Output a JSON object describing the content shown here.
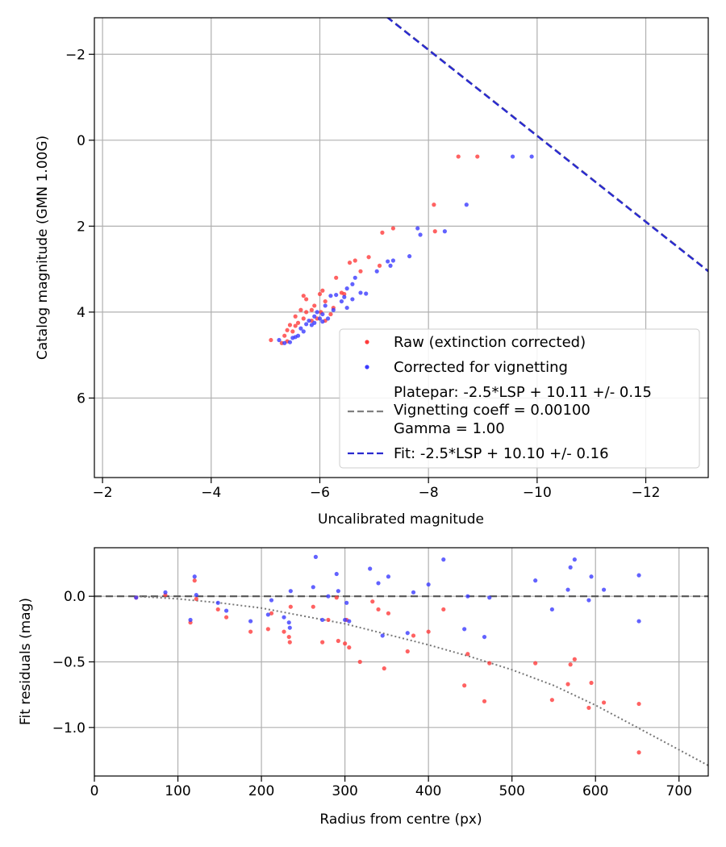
{
  "chart_data": [
    {
      "type": "scatter",
      "xlabel": "Uncalibrated magnitude",
      "ylabel": "Catalog magnitude (GMN 1.00G)",
      "xlim": [
        -1.85,
        -13.15
      ],
      "ylim": [
        7.85,
        -2.85
      ],
      "x_inverted": true,
      "y_inverted": true,
      "grid": true,
      "xticks": [
        -2,
        -4,
        -6,
        -8,
        -10,
        -12
      ],
      "xtick_labels": [
        "−2",
        "−4",
        "−6",
        "−8",
        "−10",
        "−12"
      ],
      "yticks": [
        -2,
        0,
        2,
        4,
        6
      ],
      "ytick_labels": [
        "−2",
        "0",
        "2",
        "4",
        "6"
      ],
      "legend_position": "lower-right",
      "legend": [
        {
          "label": "Raw (extinction corrected)",
          "marker": "dot",
          "color": "#ff3b3b"
        },
        {
          "label": "Corrected for vignetting",
          "marker": "dot",
          "color": "#3b3bff"
        },
        {
          "label_lines": [
            "Platepar: -2.5*LSP + 10.11 +/- 0.15",
            "Vignetting coeff = 0.00100",
            "Gamma = 1.00"
          ],
          "marker": "dashed-line",
          "color": "#808080"
        },
        {
          "label": "Fit: -2.5*LSP + 10.10 +/- 0.16",
          "marker": "dashed-line",
          "color": "#2a2ad0"
        }
      ],
      "fit_lines": [
        {
          "name": "Platepar",
          "slope": -1,
          "intercept": -10.11,
          "color": "#808080"
        },
        {
          "name": "Fit",
          "slope": -1,
          "intercept": -10.1,
          "color": "#2a2ad0"
        }
      ],
      "series": [
        {
          "name": "Raw (extinction corrected)",
          "color": "#ff3b3b",
          "points": [
            [
              -8.55,
              0.38
            ],
            [
              -8.9,
              0.38
            ],
            [
              -8.1,
              1.5
            ],
            [
              -8.12,
              2.12
            ],
            [
              -7.35,
              2.05
            ],
            [
              -7.15,
              2.15
            ],
            [
              -6.9,
              2.72
            ],
            [
              -6.65,
              2.8
            ],
            [
              -6.55,
              2.85
            ],
            [
              -6.75,
              3.05
            ],
            [
              -7.1,
              2.92
            ],
            [
              -6.3,
              3.2
            ],
            [
              -6.4,
              3.55
            ],
            [
              -6.05,
              3.5
            ],
            [
              -6.0,
              3.58
            ],
            [
              -6.45,
              3.58
            ],
            [
              -5.7,
              3.62
            ],
            [
              -5.75,
              3.7
            ],
            [
              -5.9,
              3.85
            ],
            [
              -6.1,
              3.75
            ],
            [
              -6.25,
              3.9
            ],
            [
              -5.65,
              3.95
            ],
            [
              -5.85,
              3.95
            ],
            [
              -5.75,
              4.0
            ],
            [
              -6.02,
              4.0
            ],
            [
              -6.2,
              4.05
            ],
            [
              -5.55,
              4.1
            ],
            [
              -5.7,
              4.15
            ],
            [
              -5.6,
              4.25
            ],
            [
              -5.85,
              4.2
            ],
            [
              -5.95,
              4.15
            ],
            [
              -6.1,
              4.2
            ],
            [
              -5.45,
              4.3
            ],
            [
              -5.55,
              4.32
            ],
            [
              -5.4,
              4.42
            ],
            [
              -5.5,
              4.45
            ],
            [
              -5.35,
              4.55
            ],
            [
              -5.1,
              4.65
            ],
            [
              -5.4,
              4.68
            ],
            [
              -5.3,
              4.72
            ]
          ]
        },
        {
          "name": "Corrected for vignetting",
          "color": "#3b3bff",
          "points": [
            [
              -9.55,
              0.38
            ],
            [
              -9.9,
              0.38
            ],
            [
              -8.7,
              1.5
            ],
            [
              -8.3,
              2.12
            ],
            [
              -7.8,
              2.05
            ],
            [
              -7.85,
              2.2
            ],
            [
              -7.65,
              2.7
            ],
            [
              -7.35,
              2.8
            ],
            [
              -7.25,
              2.82
            ],
            [
              -7.3,
              2.92
            ],
            [
              -7.05,
              3.05
            ],
            [
              -6.65,
              3.2
            ],
            [
              -6.6,
              3.35
            ],
            [
              -6.5,
              3.45
            ],
            [
              -6.75,
              3.55
            ],
            [
              -6.85,
              3.57
            ],
            [
              -6.3,
              3.6
            ],
            [
              -6.2,
              3.62
            ],
            [
              -6.45,
              3.65
            ],
            [
              -6.6,
              3.7
            ],
            [
              -6.4,
              3.75
            ],
            [
              -6.5,
              3.9
            ],
            [
              -6.25,
              3.95
            ],
            [
              -6.1,
              3.85
            ],
            [
              -5.95,
              4.0
            ],
            [
              -6.05,
              4.05
            ],
            [
              -5.9,
              4.1
            ],
            [
              -6.0,
              4.15
            ],
            [
              -6.15,
              4.15
            ],
            [
              -5.8,
              4.2
            ],
            [
              -5.9,
              4.25
            ],
            [
              -6.05,
              4.22
            ],
            [
              -5.75,
              4.28
            ],
            [
              -5.85,
              4.3
            ],
            [
              -5.65,
              4.38
            ],
            [
              -5.7,
              4.45
            ],
            [
              -5.6,
              4.55
            ],
            [
              -5.5,
              4.6
            ],
            [
              -5.45,
              4.7
            ],
            [
              -5.25,
              4.65
            ],
            [
              -5.35,
              4.72
            ],
            [
              -5.55,
              4.58
            ]
          ]
        }
      ]
    },
    {
      "type": "scatter",
      "xlabel": "Radius from centre (px)",
      "ylabel": "Fit residuals (mag)",
      "xlim": [
        0,
        735
      ],
      "ylim": [
        -1.37,
        0.37
      ],
      "grid": true,
      "xticks": [
        0,
        100,
        200,
        300,
        400,
        500,
        600,
        700
      ],
      "xtick_labels": [
        "0",
        "100",
        "200",
        "300",
        "400",
        "500",
        "600",
        "700"
      ],
      "yticks": [
        -1.0,
        -0.5,
        0.0
      ],
      "ytick_labels": [
        "−1.0",
        "−0.5",
        "0.0"
      ],
      "reference_lines": [
        {
          "name": "zero",
          "style": "dashed",
          "color": "#555555",
          "y": 0
        },
        {
          "name": "vignetting model",
          "style": "dotted",
          "color": "#777777",
          "points": [
            [
              50,
              0.0
            ],
            [
              100,
              -0.02
            ],
            [
              150,
              -0.05
            ],
            [
              200,
              -0.09
            ],
            [
              250,
              -0.15
            ],
            [
              300,
              -0.21
            ],
            [
              350,
              -0.29
            ],
            [
              400,
              -0.37
            ],
            [
              450,
              -0.46
            ],
            [
              500,
              -0.56
            ],
            [
              550,
              -0.68
            ],
            [
              600,
              -0.83
            ],
            [
              650,
              -1.0
            ],
            [
              700,
              -1.17
            ],
            [
              735,
              -1.29
            ]
          ]
        }
      ],
      "series": [
        {
          "name": "Raw (extinction corrected)",
          "color": "#ff3b3b",
          "points": [
            [
              50,
              -0.01
            ],
            [
              85,
              0.01
            ],
            [
              115,
              -0.2
            ],
            [
              120,
              0.12
            ],
            [
              122,
              -0.02
            ],
            [
              148,
              -0.1
            ],
            [
              158,
              -0.16
            ],
            [
              187,
              -0.27
            ],
            [
              208,
              -0.25
            ],
            [
              212,
              -0.13
            ],
            [
              227,
              -0.27
            ],
            [
              233,
              -0.31
            ],
            [
              234,
              -0.35
            ],
            [
              235,
              -0.08
            ],
            [
              262,
              -0.08
            ],
            [
              273,
              -0.35
            ],
            [
              280,
              -0.18
            ],
            [
              290,
              -0.01
            ],
            [
              292,
              -0.34
            ],
            [
              300,
              -0.36
            ],
            [
              302,
              -0.18
            ],
            [
              305,
              -0.39
            ],
            [
              318,
              -0.5
            ],
            [
              333,
              -0.04
            ],
            [
              340,
              -0.1
            ],
            [
              347,
              -0.55
            ],
            [
              352,
              -0.13
            ],
            [
              375,
              -0.42
            ],
            [
              382,
              -0.3
            ],
            [
              400,
              -0.27
            ],
            [
              418,
              -0.1
            ],
            [
              443,
              -0.68
            ],
            [
              447,
              -0.44
            ],
            [
              467,
              -0.8
            ],
            [
              473,
              -0.51
            ],
            [
              528,
              -0.51
            ],
            [
              548,
              -0.79
            ],
            [
              567,
              -0.67
            ],
            [
              570,
              -0.52
            ],
            [
              575,
              -0.48
            ],
            [
              592,
              -0.85
            ],
            [
              595,
              -0.66
            ],
            [
              610,
              -0.81
            ],
            [
              652,
              -0.82
            ],
            [
              652,
              -1.19
            ]
          ]
        },
        {
          "name": "Corrected for vignetting",
          "color": "#3b3bff",
          "points": [
            [
              50,
              -0.01
            ],
            [
              85,
              0.03
            ],
            [
              115,
              -0.18
            ],
            [
              120,
              0.15
            ],
            [
              122,
              0.01
            ],
            [
              148,
              -0.05
            ],
            [
              158,
              -0.11
            ],
            [
              187,
              -0.19
            ],
            [
              208,
              -0.14
            ],
            [
              212,
              -0.03
            ],
            [
              227,
              -0.16
            ],
            [
              233,
              -0.2
            ],
            [
              234,
              -0.24
            ],
            [
              235,
              0.04
            ],
            [
              262,
              0.07
            ],
            [
              265,
              0.3
            ],
            [
              273,
              -0.18
            ],
            [
              280,
              0.0
            ],
            [
              290,
              0.17
            ],
            [
              292,
              0.04
            ],
            [
              300,
              -0.18
            ],
            [
              302,
              -0.05
            ],
            [
              305,
              -0.19
            ],
            [
              330,
              0.21
            ],
            [
              340,
              0.1
            ],
            [
              345,
              -0.3
            ],
            [
              352,
              0.15
            ],
            [
              375,
              -0.28
            ],
            [
              382,
              0.03
            ],
            [
              400,
              0.09
            ],
            [
              418,
              0.28
            ],
            [
              443,
              -0.25
            ],
            [
              447,
              0.0
            ],
            [
              467,
              -0.31
            ],
            [
              473,
              -0.01
            ],
            [
              528,
              0.12
            ],
            [
              548,
              -0.1
            ],
            [
              567,
              0.05
            ],
            [
              570,
              0.22
            ],
            [
              575,
              0.28
            ],
            [
              592,
              -0.03
            ],
            [
              595,
              0.15
            ],
            [
              610,
              0.05
            ],
            [
              652,
              0.16
            ],
            [
              652,
              -0.19
            ]
          ]
        }
      ]
    }
  ]
}
